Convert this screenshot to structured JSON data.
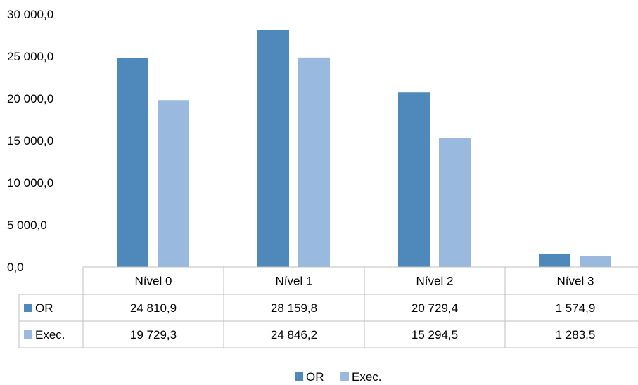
{
  "chart_data": {
    "type": "bar",
    "categories": [
      "Nível 0",
      "Nível 1",
      "Nível 2",
      "Nível 3"
    ],
    "series": [
      {
        "name": "OR",
        "values": [
          24810.9,
          28159.8,
          20729.4,
          1574.9
        ],
        "labels": [
          "24 810,9",
          "28 159,8",
          "20 729,4",
          "1 574,9"
        ],
        "color": "#4f88bb"
      },
      {
        "name": "Exec.",
        "values": [
          19729.3,
          24846.2,
          15294.5,
          1283.5
        ],
        "labels": [
          "19 729,3",
          "24 846,2",
          "15 294,5",
          "1 283,5"
        ],
        "color": "#9ab9df"
      }
    ],
    "ylim": [
      0,
      30000
    ],
    "yticks": [
      0,
      5000,
      10000,
      15000,
      20000,
      25000,
      30000
    ],
    "ytick_labels": [
      "0,0",
      "5 000,0",
      "10 000,0",
      "15 000,0",
      "20 000,0",
      "25 000,0",
      "30 000,0"
    ],
    "data_table": true,
    "legend_position": "bottom",
    "grid": false,
    "title": "",
    "xlabel": "",
    "ylabel": ""
  }
}
